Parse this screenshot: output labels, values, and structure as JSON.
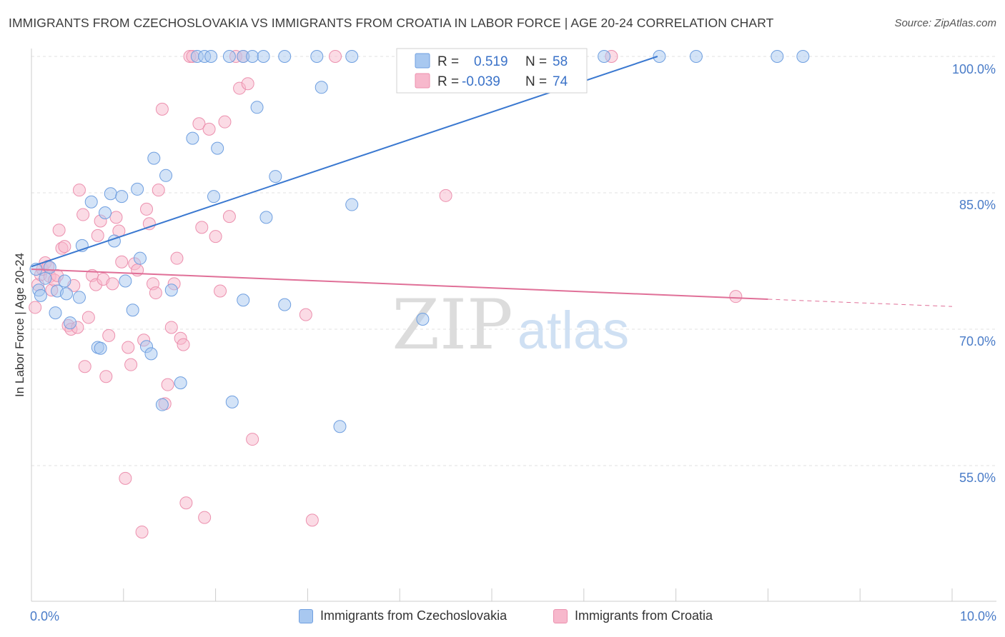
{
  "title": "IMMIGRANTS FROM CZECHOSLOVAKIA VS IMMIGRANTS FROM CROATIA IN LABOR FORCE | AGE 20-24 CORRELATION CHART",
  "source": "Source: ZipAtlas.com",
  "watermark": {
    "zip": "ZIP",
    "atlas": "atlas"
  },
  "colors": {
    "blue_fill": "#a8c8f0",
    "blue_stroke": "#6f9fe0",
    "blue_line": "#3a78d0",
    "pink_fill": "#f7b8cc",
    "pink_stroke": "#ec90ae",
    "pink_line": "#e07098",
    "axis_label": "#4a7cc8",
    "grid": "#e2e2e2"
  },
  "legend": {
    "rows": [
      {
        "r_label": "R =",
        "r_value": "0.519",
        "n_label": "N =",
        "n_value": "58"
      },
      {
        "r_label": "R =",
        "r_value": "-0.039",
        "n_label": "N =",
        "n_value": "74"
      }
    ]
  },
  "chart_data": {
    "type": "scatter",
    "ylabel": "In Labor Force | Age 20-24",
    "xlim": [
      0,
      10
    ],
    "ylim": [
      40,
      100
    ],
    "x_tick_labels": {
      "min": "0.0%",
      "max": "10.0%"
    },
    "y_ticks": [
      {
        "value": 100,
        "label": "100.0%"
      },
      {
        "value": 85,
        "label": "85.0%"
      },
      {
        "value": 70,
        "label": "70.0%"
      },
      {
        "value": 55,
        "label": "55.0%"
      }
    ],
    "grid": true,
    "legend_placement": "top-center",
    "series": [
      {
        "name": "Immigrants from Czechoslovakia",
        "r": 0.519,
        "n": 58,
        "trend": {
          "x": [
            0.0,
            6.8
          ],
          "y": [
            76.9,
            100.0
          ]
        },
        "points": [
          [
            0.05,
            76.6
          ],
          [
            0.08,
            74.3
          ],
          [
            0.1,
            73.7
          ],
          [
            0.15,
            75.6
          ],
          [
            0.2,
            76.8
          ],
          [
            0.26,
            71.8
          ],
          [
            0.28,
            74.2
          ],
          [
            0.36,
            75.3
          ],
          [
            0.38,
            73.9
          ],
          [
            0.42,
            70.7
          ],
          [
            0.52,
            73.5
          ],
          [
            0.55,
            79.2
          ],
          [
            0.65,
            84.0
          ],
          [
            0.72,
            68.0
          ],
          [
            0.75,
            67.9
          ],
          [
            0.8,
            82.8
          ],
          [
            0.86,
            84.9
          ],
          [
            0.9,
            79.7
          ],
          [
            0.98,
            84.6
          ],
          [
            1.02,
            75.3
          ],
          [
            1.1,
            72.1
          ],
          [
            1.15,
            85.4
          ],
          [
            1.18,
            77.8
          ],
          [
            1.25,
            68.1
          ],
          [
            1.3,
            67.3
          ],
          [
            1.33,
            88.8
          ],
          [
            1.42,
            61.7
          ],
          [
            1.46,
            86.9
          ],
          [
            1.52,
            74.3
          ],
          [
            1.62,
            64.1
          ],
          [
            1.75,
            91.0
          ],
          [
            1.8,
            100.0
          ],
          [
            1.88,
            100.0
          ],
          [
            1.95,
            100.0
          ],
          [
            1.98,
            84.6
          ],
          [
            2.02,
            89.9
          ],
          [
            2.15,
            100.0
          ],
          [
            2.18,
            62.0
          ],
          [
            2.3,
            100.0
          ],
          [
            2.3,
            73.2
          ],
          [
            2.4,
            100.0
          ],
          [
            2.45,
            94.4
          ],
          [
            2.52,
            100.0
          ],
          [
            2.55,
            82.3
          ],
          [
            2.65,
            86.8
          ],
          [
            2.75,
            100.0
          ],
          [
            2.75,
            72.7
          ],
          [
            3.1,
            100.0
          ],
          [
            3.15,
            96.6
          ],
          [
            3.35,
            59.3
          ],
          [
            3.48,
            100.0
          ],
          [
            3.48,
            83.7
          ],
          [
            4.25,
            71.1
          ],
          [
            6.22,
            100.0
          ],
          [
            6.82,
            100.0
          ],
          [
            7.22,
            100.0
          ],
          [
            8.1,
            100.0
          ],
          [
            8.38,
            100.0
          ]
        ]
      },
      {
        "name": "Immigrants from Croatia",
        "r": -0.039,
        "n": 74,
        "trend": {
          "x": [
            0.0,
            8.0
          ],
          "y": [
            76.6,
            73.3
          ]
        },
        "trend_ext": {
          "x": [
            8.0,
            10.0
          ],
          "y": [
            73.3,
            72.5
          ]
        },
        "points": [
          [
            0.04,
            72.4
          ],
          [
            0.07,
            74.9
          ],
          [
            0.1,
            76.0
          ],
          [
            0.12,
            76.6
          ],
          [
            0.15,
            77.3
          ],
          [
            0.18,
            76.9
          ],
          [
            0.2,
            75.8
          ],
          [
            0.22,
            74.3
          ],
          [
            0.25,
            75.4
          ],
          [
            0.28,
            75.9
          ],
          [
            0.3,
            80.9
          ],
          [
            0.33,
            78.9
          ],
          [
            0.36,
            79.1
          ],
          [
            0.4,
            70.4
          ],
          [
            0.43,
            70.0
          ],
          [
            0.46,
            74.8
          ],
          [
            0.5,
            70.2
          ],
          [
            0.52,
            85.3
          ],
          [
            0.56,
            82.6
          ],
          [
            0.58,
            65.9
          ],
          [
            0.62,
            71.3
          ],
          [
            0.66,
            75.9
          ],
          [
            0.7,
            74.9
          ],
          [
            0.72,
            80.3
          ],
          [
            0.75,
            81.9
          ],
          [
            0.78,
            75.5
          ],
          [
            0.81,
            64.8
          ],
          [
            0.84,
            69.3
          ],
          [
            0.88,
            75.0
          ],
          [
            0.92,
            82.3
          ],
          [
            0.95,
            80.8
          ],
          [
            0.98,
            77.4
          ],
          [
            1.02,
            53.6
          ],
          [
            1.05,
            68.0
          ],
          [
            1.08,
            66.1
          ],
          [
            1.12,
            77.2
          ],
          [
            1.15,
            76.5
          ],
          [
            1.2,
            47.7
          ],
          [
            1.22,
            68.8
          ],
          [
            1.25,
            83.2
          ],
          [
            1.28,
            81.6
          ],
          [
            1.32,
            75.0
          ],
          [
            1.35,
            74.0
          ],
          [
            1.38,
            85.3
          ],
          [
            1.42,
            94.2
          ],
          [
            1.45,
            61.8
          ],
          [
            1.48,
            63.9
          ],
          [
            1.52,
            70.2
          ],
          [
            1.55,
            75.0
          ],
          [
            1.58,
            77.8
          ],
          [
            1.62,
            69.0
          ],
          [
            1.65,
            68.3
          ],
          [
            1.68,
            50.9
          ],
          [
            1.72,
            100.0
          ],
          [
            1.75,
            100.0
          ],
          [
            1.82,
            92.6
          ],
          [
            1.85,
            81.2
          ],
          [
            1.88,
            49.3
          ],
          [
            1.93,
            92.0
          ],
          [
            2.0,
            80.2
          ],
          [
            2.05,
            74.2
          ],
          [
            2.1,
            92.8
          ],
          [
            2.15,
            82.4
          ],
          [
            2.22,
            100.0
          ],
          [
            2.26,
            96.5
          ],
          [
            2.3,
            100.0
          ],
          [
            2.35,
            97.0
          ],
          [
            2.4,
            57.9
          ],
          [
            2.98,
            71.6
          ],
          [
            3.05,
            49.0
          ],
          [
            3.3,
            100.0
          ],
          [
            4.5,
            84.7
          ],
          [
            6.3,
            100.0
          ],
          [
            7.65,
            73.6
          ]
        ]
      }
    ]
  }
}
